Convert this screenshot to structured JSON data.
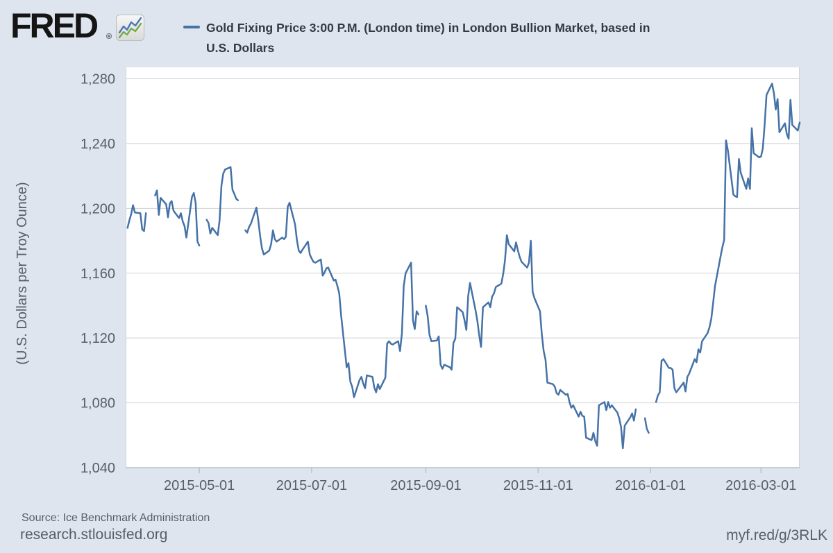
{
  "header": {
    "logo_text": "FRED",
    "logo_registered": "®",
    "legend": {
      "label_line1": "Gold Fixing Price 3:00 P.M. (London time) in London Bullion Market, based in",
      "label_line2": "U.S. Dollars",
      "line_color": "#4572a7"
    }
  },
  "footer": {
    "source": "Source: Ice Benchmark Administration",
    "site": "research.stlouisfed.org",
    "short_url": "myf.red/g/3RLK"
  },
  "chart_data": {
    "type": "line",
    "title": "Gold Fixing Price 3:00 P.M. (London time) in London Bullion Market, based in U.S. Dollars",
    "xlabel": "",
    "ylabel": "(U.S. Dollars per Troy Ounce)",
    "ylim": [
      1040,
      1280
    ],
    "x_range": [
      "2015-03-22",
      "2016-03-22"
    ],
    "grid": true,
    "legend_position": "top",
    "line_color": "#4572a7",
    "background_color": "#dee5ee",
    "plot_background": "#ffffff",
    "gridline_color": "#d2d2d2",
    "axis_color": "#b6c2cd",
    "label_color": "#565e66",
    "y_ticks": [
      {
        "label": "1,280",
        "value": 1280
      },
      {
        "label": "1,240",
        "value": 1240
      },
      {
        "label": "1,200",
        "value": 1200
      },
      {
        "label": "1,160",
        "value": 1160
      },
      {
        "label": "1,120",
        "value": 1120
      },
      {
        "label": "1,080",
        "value": 1080
      },
      {
        "label": "1,040",
        "value": 1040
      }
    ],
    "x_ticks": [
      {
        "label": "2015-05-01",
        "date": "2015-05-01"
      },
      {
        "label": "2015-07-01",
        "date": "2015-07-01"
      },
      {
        "label": "2015-09-01",
        "date": "2015-09-01"
      },
      {
        "label": "2015-11-01",
        "date": "2015-11-01"
      },
      {
        "label": "2016-01-01",
        "date": "2016-01-01"
      },
      {
        "label": "2016-03-01",
        "date": "2016-03-01"
      }
    ],
    "gap_break_days": 3.5,
    "series": [
      {
        "name": "Gold Fixing Price 3:00 P.M. (London time) in London Bullion Market, based in U.S. Dollars",
        "color": "#4572a7",
        "points": [
          [
            "2015-03-23",
            1188.0
          ],
          [
            "2015-03-24",
            1192.5
          ],
          [
            "2015-03-25",
            1196.5
          ],
          [
            "2015-03-26",
            1202.0
          ],
          [
            "2015-03-27",
            1197.5
          ],
          [
            "2015-03-30",
            1197.0
          ],
          [
            "2015-03-31",
            1187.0
          ],
          [
            "2015-04-01",
            1186.0
          ],
          [
            "2015-04-02",
            1197.0
          ],
          [
            "2015-04-07",
            1208.0
          ],
          [
            "2015-04-08",
            1211.0
          ],
          [
            "2015-04-09",
            1196.0
          ],
          [
            "2015-04-10",
            1206.5
          ],
          [
            "2015-04-13",
            1202.5
          ],
          [
            "2015-04-14",
            1194.5
          ],
          [
            "2015-04-15",
            1203.0
          ],
          [
            "2015-04-16",
            1204.5
          ],
          [
            "2015-04-17",
            1198.5
          ],
          [
            "2015-04-20",
            1194.0
          ],
          [
            "2015-04-21",
            1197.0
          ],
          [
            "2015-04-22",
            1192.0
          ],
          [
            "2015-04-23",
            1189.0
          ],
          [
            "2015-04-24",
            1182.0
          ],
          [
            "2015-04-27",
            1207.0
          ],
          [
            "2015-04-28",
            1209.5
          ],
          [
            "2015-04-29",
            1203.5
          ],
          [
            "2015-04-30",
            1179.5
          ],
          [
            "2015-05-01",
            1177.0
          ],
          [
            "2015-05-05",
            1193.0
          ],
          [
            "2015-05-06",
            1191.0
          ],
          [
            "2015-05-07",
            1184.5
          ],
          [
            "2015-05-08",
            1188.0
          ],
          [
            "2015-05-11",
            1183.5
          ],
          [
            "2015-05-12",
            1192.5
          ],
          [
            "2015-05-13",
            1214.0
          ],
          [
            "2015-05-14",
            1221.5
          ],
          [
            "2015-05-15",
            1224.0
          ],
          [
            "2015-05-18",
            1225.5
          ],
          [
            "2015-05-19",
            1211.5
          ],
          [
            "2015-05-20",
            1209.0
          ],
          [
            "2015-05-21",
            1206.0
          ],
          [
            "2015-05-22",
            1205.0
          ],
          [
            "2015-05-26",
            1186.5
          ],
          [
            "2015-05-27",
            1185.0
          ],
          [
            "2015-05-28",
            1188.5
          ],
          [
            "2015-05-29",
            1190.5
          ],
          [
            "2015-06-01",
            1200.5
          ],
          [
            "2015-06-02",
            1193.0
          ],
          [
            "2015-06-03",
            1183.0
          ],
          [
            "2015-06-04",
            1175.5
          ],
          [
            "2015-06-05",
            1171.5
          ],
          [
            "2015-06-08",
            1174.0
          ],
          [
            "2015-06-09",
            1178.0
          ],
          [
            "2015-06-10",
            1186.5
          ],
          [
            "2015-06-11",
            1181.0
          ],
          [
            "2015-06-12",
            1179.5
          ],
          [
            "2015-06-15",
            1182.0
          ],
          [
            "2015-06-16",
            1181.0
          ],
          [
            "2015-06-17",
            1182.5
          ],
          [
            "2015-06-18",
            1201.0
          ],
          [
            "2015-06-19",
            1203.5
          ],
          [
            "2015-06-22",
            1190.0
          ],
          [
            "2015-06-23",
            1180.5
          ],
          [
            "2015-06-24",
            1174.0
          ],
          [
            "2015-06-25",
            1172.5
          ],
          [
            "2015-06-26",
            1174.5
          ],
          [
            "2015-06-29",
            1179.5
          ],
          [
            "2015-06-30",
            1171.5
          ],
          [
            "2015-07-01",
            1169.0
          ],
          [
            "2015-07-02",
            1167.0
          ],
          [
            "2015-07-03",
            1166.5
          ],
          [
            "2015-07-06",
            1168.5
          ],
          [
            "2015-07-07",
            1158.5
          ],
          [
            "2015-07-08",
            1160.5
          ],
          [
            "2015-07-09",
            1163.0
          ],
          [
            "2015-07-10",
            1163.5
          ],
          [
            "2015-07-13",
            1155.5
          ],
          [
            "2015-07-14",
            1156.0
          ],
          [
            "2015-07-15",
            1152.0
          ],
          [
            "2015-07-16",
            1147.5
          ],
          [
            "2015-07-17",
            1134.0
          ],
          [
            "2015-07-20",
            1102.0
          ],
          [
            "2015-07-21",
            1104.5
          ],
          [
            "2015-07-22",
            1093.0
          ],
          [
            "2015-07-23",
            1090.0
          ],
          [
            "2015-07-24",
            1083.5
          ],
          [
            "2015-07-27",
            1094.0
          ],
          [
            "2015-07-28",
            1096.0
          ],
          [
            "2015-07-29",
            1092.0
          ],
          [
            "2015-07-30",
            1089.0
          ],
          [
            "2015-07-31",
            1097.0
          ],
          [
            "2015-08-03",
            1096.0
          ],
          [
            "2015-08-04",
            1089.5
          ],
          [
            "2015-08-05",
            1086.5
          ],
          [
            "2015-08-06",
            1091.5
          ],
          [
            "2015-08-07",
            1088.5
          ],
          [
            "2015-08-10",
            1095.5
          ],
          [
            "2015-08-11",
            1116.5
          ],
          [
            "2015-08-12",
            1118.0
          ],
          [
            "2015-08-13",
            1116.5
          ],
          [
            "2015-08-14",
            1116.0
          ],
          [
            "2015-08-17",
            1118.0
          ],
          [
            "2015-08-18",
            1112.0
          ],
          [
            "2015-08-19",
            1123.0
          ],
          [
            "2015-08-20",
            1152.0
          ],
          [
            "2015-08-21",
            1160.0
          ],
          [
            "2015-08-24",
            1166.5
          ],
          [
            "2015-08-25",
            1131.0
          ],
          [
            "2015-08-26",
            1125.5
          ],
          [
            "2015-08-27",
            1136.5
          ],
          [
            "2015-08-28",
            1134.5
          ],
          [
            "2015-09-01",
            1140.0
          ],
          [
            "2015-09-02",
            1133.5
          ],
          [
            "2015-09-03",
            1122.0
          ],
          [
            "2015-09-04",
            1118.0
          ],
          [
            "2015-09-07",
            1118.5
          ],
          [
            "2015-09-08",
            1121.0
          ],
          [
            "2015-09-09",
            1103.5
          ],
          [
            "2015-09-10",
            1101.0
          ],
          [
            "2015-09-11",
            1103.5
          ],
          [
            "2015-09-14",
            1102.0
          ],
          [
            "2015-09-15",
            1100.5
          ],
          [
            "2015-09-16",
            1117.0
          ],
          [
            "2015-09-17",
            1119.5
          ],
          [
            "2015-09-18",
            1139.0
          ],
          [
            "2015-09-21",
            1136.0
          ],
          [
            "2015-09-22",
            1131.0
          ],
          [
            "2015-09-23",
            1125.0
          ],
          [
            "2015-09-24",
            1146.0
          ],
          [
            "2015-09-25",
            1154.0
          ],
          [
            "2015-09-28",
            1137.0
          ],
          [
            "2015-09-29",
            1130.5
          ],
          [
            "2015-09-30",
            1121.5
          ],
          [
            "2015-10-01",
            1114.5
          ],
          [
            "2015-10-02",
            1139.0
          ],
          [
            "2015-10-05",
            1142.0
          ],
          [
            "2015-10-06",
            1139.0
          ],
          [
            "2015-10-07",
            1145.5
          ],
          [
            "2015-10-08",
            1147.5
          ],
          [
            "2015-10-09",
            1151.5
          ],
          [
            "2015-10-12",
            1153.5
          ],
          [
            "2015-10-13",
            1159.5
          ],
          [
            "2015-10-14",
            1168.0
          ],
          [
            "2015-10-15",
            1183.5
          ],
          [
            "2015-10-16",
            1178.0
          ],
          [
            "2015-10-19",
            1173.5
          ],
          [
            "2015-10-20",
            1179.0
          ],
          [
            "2015-10-21",
            1174.0
          ],
          [
            "2015-10-22",
            1170.0
          ],
          [
            "2015-10-23",
            1167.0
          ],
          [
            "2015-10-26",
            1163.5
          ],
          [
            "2015-10-27",
            1166.5
          ],
          [
            "2015-10-28",
            1180.0
          ],
          [
            "2015-10-29",
            1148.5
          ],
          [
            "2015-10-30",
            1144.5
          ],
          [
            "2015-11-02",
            1136.5
          ],
          [
            "2015-11-03",
            1122.0
          ],
          [
            "2015-11-04",
            1112.0
          ],
          [
            "2015-11-05",
            1106.5
          ],
          [
            "2015-11-06",
            1092.5
          ],
          [
            "2015-11-09",
            1091.5
          ],
          [
            "2015-11-10",
            1090.0
          ],
          [
            "2015-11-11",
            1086.0
          ],
          [
            "2015-11-12",
            1085.0
          ],
          [
            "2015-11-13",
            1088.0
          ],
          [
            "2015-11-16",
            1085.0
          ],
          [
            "2015-11-17",
            1085.5
          ],
          [
            "2015-11-18",
            1080.5
          ],
          [
            "2015-11-19",
            1077.0
          ],
          [
            "2015-11-20",
            1078.5
          ],
          [
            "2015-11-23",
            1071.5
          ],
          [
            "2015-11-24",
            1074.5
          ],
          [
            "2015-11-25",
            1072.0
          ],
          [
            "2015-11-26",
            1071.5
          ],
          [
            "2015-11-27",
            1058.5
          ],
          [
            "2015-11-30",
            1057.0
          ],
          [
            "2015-12-01",
            1061.5
          ],
          [
            "2015-12-02",
            1056.5
          ],
          [
            "2015-12-03",
            1053.5
          ],
          [
            "2015-12-04",
            1078.5
          ],
          [
            "2015-12-07",
            1080.5
          ],
          [
            "2015-12-08",
            1075.5
          ],
          [
            "2015-12-09",
            1080.5
          ],
          [
            "2015-12-10",
            1077.0
          ],
          [
            "2015-12-11",
            1078.5
          ],
          [
            "2015-12-14",
            1074.0
          ],
          [
            "2015-12-15",
            1070.5
          ],
          [
            "2015-12-16",
            1065.0
          ],
          [
            "2015-12-17",
            1052.0
          ],
          [
            "2015-12-18",
            1066.0
          ],
          [
            "2015-12-21",
            1071.0
          ],
          [
            "2015-12-22",
            1073.5
          ],
          [
            "2015-12-23",
            1069.0
          ],
          [
            "2015-12-24",
            1076.0
          ],
          [
            "2015-12-29",
            1070.5
          ],
          [
            "2015-12-30",
            1064.0
          ],
          [
            "2015-12-31",
            1061.5
          ],
          [
            "2016-01-04",
            1080.5
          ],
          [
            "2016-01-05",
            1084.5
          ],
          [
            "2016-01-06",
            1086.5
          ],
          [
            "2016-01-07",
            1106.0
          ],
          [
            "2016-01-08",
            1107.0
          ],
          [
            "2016-01-11",
            1101.5
          ],
          [
            "2016-01-12",
            1101.5
          ],
          [
            "2016-01-13",
            1100.5
          ],
          [
            "2016-01-14",
            1089.0
          ],
          [
            "2016-01-15",
            1086.5
          ],
          [
            "2016-01-18",
            1091.0
          ],
          [
            "2016-01-19",
            1092.5
          ],
          [
            "2016-01-20",
            1087.0
          ],
          [
            "2016-01-21",
            1096.0
          ],
          [
            "2016-01-22",
            1098.0
          ],
          [
            "2016-01-25",
            1107.0
          ],
          [
            "2016-01-26",
            1105.0
          ],
          [
            "2016-01-27",
            1113.0
          ],
          [
            "2016-01-28",
            1111.0
          ],
          [
            "2016-01-29",
            1118.0
          ],
          [
            "2016-02-01",
            1123.0
          ],
          [
            "2016-02-02",
            1126.5
          ],
          [
            "2016-02-03",
            1132.0
          ],
          [
            "2016-02-04",
            1141.5
          ],
          [
            "2016-02-05",
            1152.0
          ],
          [
            "2016-02-08",
            1170.0
          ],
          [
            "2016-02-09",
            1176.0
          ],
          [
            "2016-02-10",
            1180.5
          ],
          [
            "2016-02-11",
            1242.0
          ],
          [
            "2016-02-12",
            1236.0
          ],
          [
            "2016-02-15",
            1208.5
          ],
          [
            "2016-02-16",
            1207.5
          ],
          [
            "2016-02-17",
            1207.0
          ],
          [
            "2016-02-18",
            1230.5
          ],
          [
            "2016-02-19",
            1222.0
          ],
          [
            "2016-02-22",
            1212.0
          ],
          [
            "2016-02-23",
            1218.5
          ],
          [
            "2016-02-24",
            1212.0
          ],
          [
            "2016-02-25",
            1249.5
          ],
          [
            "2016-02-26",
            1234.0
          ],
          [
            "2016-02-29",
            1231.5
          ],
          [
            "2016-03-01",
            1232.0
          ],
          [
            "2016-03-02",
            1237.0
          ],
          [
            "2016-03-03",
            1252.0
          ],
          [
            "2016-03-04",
            1270.0
          ],
          [
            "2016-03-07",
            1277.0
          ],
          [
            "2016-03-08",
            1271.0
          ],
          [
            "2016-03-09",
            1261.0
          ],
          [
            "2016-03-10",
            1267.5
          ],
          [
            "2016-03-11",
            1247.0
          ],
          [
            "2016-03-14",
            1252.5
          ],
          [
            "2016-03-15",
            1246.0
          ],
          [
            "2016-03-16",
            1243.0
          ],
          [
            "2016-03-17",
            1267.0
          ],
          [
            "2016-03-18",
            1251.5
          ],
          [
            "2016-03-21",
            1248.0
          ],
          [
            "2016-03-22",
            1253.0
          ]
        ]
      }
    ]
  }
}
